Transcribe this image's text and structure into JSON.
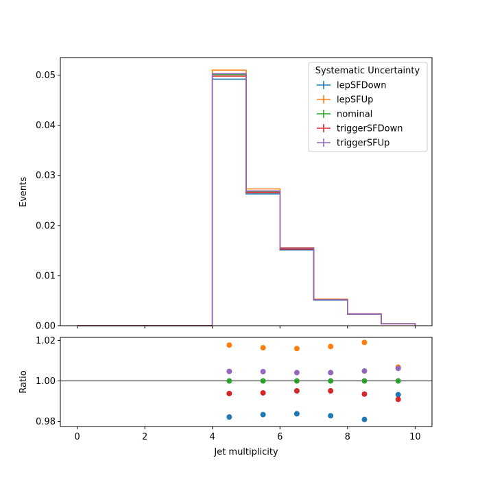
{
  "chart_data": {
    "type": "step",
    "xlabel": "Jet multiplicity",
    "top": {
      "ylabel": "Events",
      "xlim": [
        -0.5,
        10.5
      ],
      "ylim": [
        0,
        0.0535
      ],
      "yticks": [
        "0.00",
        "0.01",
        "0.02",
        "0.03",
        "0.04",
        "0.05"
      ],
      "ytick_values": [
        0,
        0.01,
        0.02,
        0.03,
        0.04,
        0.05
      ],
      "bin_edges": [
        0,
        1,
        2,
        3,
        4,
        5,
        6,
        7,
        8,
        9,
        10
      ]
    },
    "bottom": {
      "ylabel": "Ratio",
      "ylim": [
        0.9775,
        1.0215
      ],
      "yticks": [
        "0.98",
        "1.00",
        "1.02"
      ],
      "ytick_values": [
        0.98,
        1.0,
        1.02
      ],
      "xticks": [
        "0",
        "2",
        "4",
        "6",
        "8",
        "10"
      ],
      "xtick_values": [
        0,
        2,
        4,
        6,
        8,
        10
      ],
      "reference_line": 1.0,
      "points_x": [
        4.5,
        5.5,
        6.5,
        7.5,
        8.5,
        9.5
      ]
    },
    "legend": {
      "title": "Systematic Uncertainty",
      "placement": "top-right"
    },
    "series": [
      {
        "name": "lepSFDown",
        "color": "#1f77b4",
        "values": [
          0,
          0,
          0,
          0,
          0.0492,
          0.0263,
          0.0151,
          0.0051,
          0.0023,
          0.00038
        ],
        "ratio": [
          0.9822,
          0.9834,
          0.9838,
          0.9828,
          0.981,
          0.9932
        ]
      },
      {
        "name": "lepSFUp",
        "color": "#ff7f0e",
        "values": [
          0,
          0,
          0,
          0,
          0.051,
          0.0273,
          0.0156,
          0.0053,
          0.0024,
          0.00039
        ],
        "ratio": [
          1.0177,
          1.0164,
          1.016,
          1.017,
          1.019,
          1.0068
        ]
      },
      {
        "name": "nominal",
        "color": "#2ca02c",
        "values": [
          0,
          0,
          0,
          0,
          0.0501,
          0.0268,
          0.0154,
          0.0052,
          0.00235,
          0.00038
        ],
        "ratio": [
          1.0,
          1.0,
          1.0,
          1.0,
          1.0,
          1.0
        ]
      },
      {
        "name": "triggerSFDown",
        "color": "#d62728",
        "values": [
          0,
          0,
          0,
          0,
          0.0498,
          0.0266,
          0.0153,
          0.0052,
          0.00234,
          0.00037
        ],
        "ratio": [
          0.9938,
          0.9941,
          0.9951,
          0.9951,
          0.9935,
          0.9909
        ]
      },
      {
        "name": "triggerSFUp",
        "color": "#9467bd",
        "values": [
          0,
          0,
          0,
          0,
          0.0503,
          0.0269,
          0.0155,
          0.0052,
          0.00236,
          0.00038
        ],
        "ratio": [
          1.0047,
          1.0046,
          1.0041,
          1.0041,
          1.0049,
          1.0062
        ]
      }
    ]
  }
}
